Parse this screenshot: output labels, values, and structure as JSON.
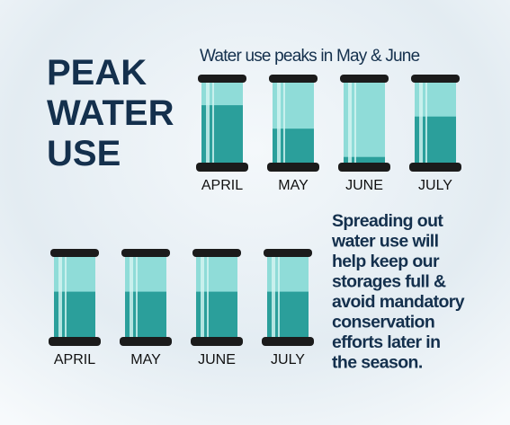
{
  "title_lines": [
    "PEAK",
    "WATER",
    "USE"
  ],
  "top_panel": {
    "heading": "Water use peaks in May & June",
    "tanks": [
      {
        "month": "APRIL",
        "fill": 0.71
      },
      {
        "month": "MAY",
        "fill": 0.42
      },
      {
        "month": "JUNE",
        "fill": 0.07
      },
      {
        "month": "JULY",
        "fill": 0.57
      }
    ]
  },
  "bottom_panel": {
    "tanks": [
      {
        "month": "APRIL",
        "fill": 0.56
      },
      {
        "month": "MAY",
        "fill": 0.56
      },
      {
        "month": "JUNE",
        "fill": 0.56
      },
      {
        "month": "JULY",
        "fill": 0.56
      }
    ]
  },
  "message_lines": [
    "Spreading out",
    "water use will",
    "help keep our",
    "storages full &",
    "avoid mandatory",
    "conservation",
    "efforts later in",
    "the season."
  ]
}
